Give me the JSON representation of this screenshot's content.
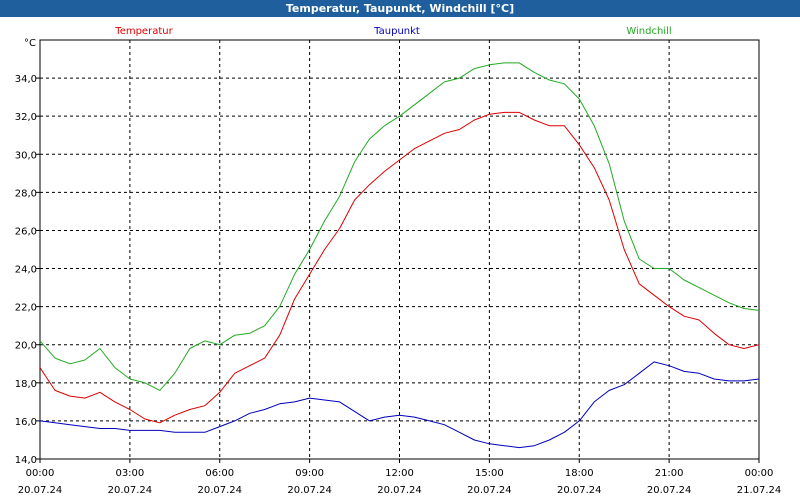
{
  "window_title": "Temperatur, Taupunkt, Windchill [°C]",
  "chart_data": {
    "type": "line",
    "title": "Temperatur, Taupunkt, Windchill [°C]",
    "ylabel": "°C",
    "ylim": [
      14,
      36
    ],
    "y_ticks": [
      "14,0",
      "16,0",
      "18,0",
      "20,0",
      "22,0",
      "24,0",
      "26,0",
      "28,0",
      "30,0",
      "32,0",
      "34,0"
    ],
    "y_tick_values": [
      14,
      16,
      18,
      20,
      22,
      24,
      26,
      28,
      30,
      32,
      34
    ],
    "xlim": [
      0,
      24
    ],
    "x_tick_hours": [
      0,
      3,
      6,
      9,
      12,
      15,
      18,
      21,
      24
    ],
    "x_tick_times": [
      "00:00",
      "03:00",
      "06:00",
      "09:00",
      "12:00",
      "15:00",
      "18:00",
      "21:00",
      "00:00"
    ],
    "x_tick_dates": [
      "20.07.24",
      "20.07.24",
      "20.07.24",
      "20.07.24",
      "20.07.24",
      "20.07.24",
      "20.07.24",
      "20.07.24",
      "21.07.24"
    ],
    "grid": true,
    "legend_position": "top",
    "series": [
      {
        "name": "Temperatur",
        "color": "#dd0000",
        "x": [
          0,
          0.5,
          1,
          1.5,
          2,
          2.5,
          3,
          3.5,
          4,
          4.5,
          5,
          5.5,
          6,
          6.5,
          7,
          7.5,
          8,
          8.5,
          9,
          9.5,
          10,
          10.5,
          11,
          11.5,
          12,
          12.5,
          13,
          13.5,
          14,
          14.5,
          15,
          15.5,
          16,
          16.5,
          17,
          17.5,
          18,
          18.5,
          19,
          19.5,
          20,
          20.5,
          21,
          21.5,
          22,
          22.5,
          23,
          23.5,
          24
        ],
        "values": [
          18.8,
          17.6,
          17.3,
          17.2,
          17.5,
          17.0,
          16.6,
          16.1,
          15.9,
          16.3,
          16.6,
          16.8,
          17.5,
          18.5,
          18.9,
          19.3,
          20.5,
          22.4,
          23.7,
          25.0,
          26.1,
          27.6,
          28.4,
          29.1,
          29.7,
          30.3,
          30.7,
          31.1,
          31.3,
          31.8,
          32.1,
          32.2,
          32.2,
          31.8,
          31.5,
          31.5,
          30.5,
          29.3,
          27.6,
          25.0,
          23.2,
          22.6,
          22.0,
          21.5,
          21.3,
          20.6,
          20.0,
          19.8,
          20.0
        ]
      },
      {
        "name": "Taupunkt",
        "color": "#0000bb",
        "x": [
          0,
          0.5,
          1,
          1.5,
          2,
          2.5,
          3,
          3.5,
          4,
          4.5,
          5,
          5.5,
          6,
          6.5,
          7,
          7.5,
          8,
          8.5,
          9,
          9.5,
          10,
          10.5,
          11,
          11.5,
          12,
          12.5,
          13,
          13.5,
          14,
          14.5,
          15,
          15.5,
          16,
          16.5,
          17,
          17.5,
          18,
          18.5,
          19,
          19.5,
          20,
          20.5,
          21,
          21.5,
          22,
          22.5,
          23,
          23.5,
          24
        ],
        "values": [
          16.0,
          15.9,
          15.8,
          15.7,
          15.6,
          15.6,
          15.5,
          15.5,
          15.5,
          15.4,
          15.4,
          15.4,
          15.7,
          16.0,
          16.4,
          16.6,
          16.9,
          17.0,
          17.2,
          17.1,
          17.0,
          16.5,
          16.0,
          16.2,
          16.3,
          16.2,
          16.0,
          15.8,
          15.4,
          15.0,
          14.8,
          14.7,
          14.6,
          14.7,
          15.0,
          15.4,
          16.0,
          17.0,
          17.6,
          17.9,
          18.5,
          19.1,
          18.9,
          18.6,
          18.5,
          18.2,
          18.1,
          18.1,
          18.2
        ]
      },
      {
        "name": "Windchill",
        "color": "#22aa22",
        "x": [
          0,
          0.5,
          1,
          1.5,
          2,
          2.5,
          3,
          3.5,
          4,
          4.5,
          5,
          5.5,
          6,
          6.5,
          7,
          7.5,
          8,
          8.5,
          9,
          9.5,
          10,
          10.5,
          11,
          11.5,
          12,
          12.5,
          13,
          13.5,
          14,
          14.5,
          15,
          15.5,
          16,
          16.5,
          17,
          17.5,
          18,
          18.5,
          19,
          19.5,
          20,
          20.5,
          21,
          21.5,
          22,
          22.5,
          23,
          23.5,
          24
        ],
        "values": [
          20.2,
          19.3,
          19.0,
          19.2,
          19.8,
          18.8,
          18.2,
          18.0,
          17.6,
          18.5,
          19.8,
          20.2,
          20.0,
          20.5,
          20.6,
          21.0,
          22.0,
          23.7,
          25.0,
          26.5,
          27.8,
          29.6,
          30.8,
          31.5,
          32.0,
          32.6,
          33.2,
          33.8,
          34.0,
          34.5,
          34.7,
          34.8,
          34.8,
          34.3,
          33.9,
          33.7,
          32.9,
          31.5,
          29.5,
          26.5,
          24.5,
          24.0,
          24.0,
          23.4,
          23.0,
          22.6,
          22.2,
          21.9,
          21.8
        ]
      }
    ]
  }
}
